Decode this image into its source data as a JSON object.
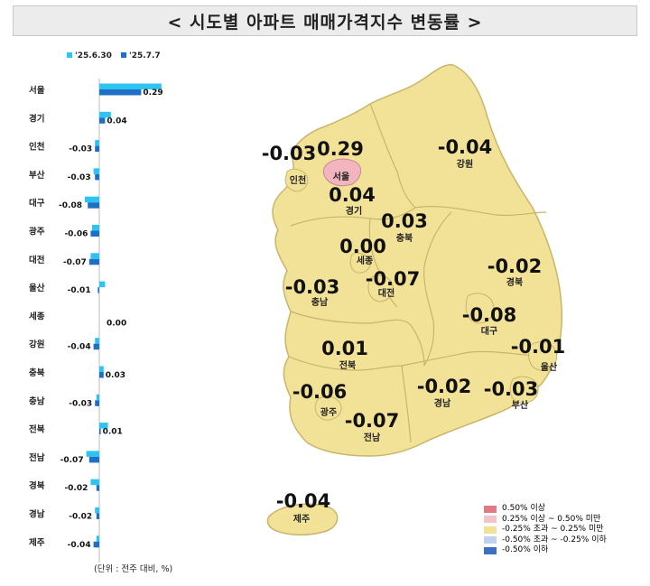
{
  "title": "< 시도별 아파트 매매가격지수 변동률 >",
  "unit_note": "(단위 : 전주 대비, %)",
  "colors": {
    "series_prev": "#2ec4f2",
    "series_curr": "#1f6fc5",
    "map_fill_default": "#f2e297",
    "map_fill_seoul": "#f2b5bf",
    "map_border": "#ffffff",
    "map_outline": "#c9b56a"
  },
  "chart_data": {
    "type": "bar",
    "orientation": "horizontal",
    "categories": [
      "서울",
      "경기",
      "인천",
      "부산",
      "대구",
      "광주",
      "대전",
      "울산",
      "세종",
      "강원",
      "충북",
      "충남",
      "전북",
      "전남",
      "경북",
      "경남",
      "제주"
    ],
    "series": [
      {
        "name": "'25.6.30",
        "values": [
          0.43,
          0.08,
          -0.03,
          -0.04,
          -0.1,
          -0.05,
          -0.06,
          0.04,
          0.0,
          -0.03,
          0.03,
          -0.02,
          0.06,
          -0.09,
          -0.06,
          -0.03,
          -0.02
        ]
      },
      {
        "name": "'25.7.7",
        "values": [
          0.29,
          0.04,
          -0.03,
          -0.03,
          -0.08,
          -0.06,
          -0.07,
          -0.01,
          0.0,
          -0.04,
          0.03,
          -0.03,
          0.01,
          -0.07,
          -0.02,
          -0.02,
          -0.04
        ]
      }
    ],
    "data_labels": [
      "0.29",
      "0.04",
      "-0.03",
      "-0.03",
      "-0.08",
      "-0.06",
      "-0.07",
      "-0.01",
      "0.00",
      "-0.04",
      "0.03",
      "-0.03",
      "0.01",
      "-0.07",
      "-0.02",
      "-0.02",
      "-0.04"
    ],
    "legend_position": "top-left",
    "grid": false
  },
  "map": {
    "regions": [
      {
        "name": "서울",
        "value": "0.29"
      },
      {
        "name": "인천",
        "value": "-0.03"
      },
      {
        "name": "경기",
        "value": "0.04"
      },
      {
        "name": "강원",
        "value": "-0.04"
      },
      {
        "name": "충북",
        "value": "0.03"
      },
      {
        "name": "세종",
        "value": "0.00"
      },
      {
        "name": "대전",
        "value": "-0.07"
      },
      {
        "name": "충남",
        "value": "-0.03"
      },
      {
        "name": "경북",
        "value": "-0.02"
      },
      {
        "name": "대구",
        "value": "-0.08"
      },
      {
        "name": "울산",
        "value": "-0.01"
      },
      {
        "name": "부산",
        "value": "-0.03"
      },
      {
        "name": "경남",
        "value": "-0.02"
      },
      {
        "name": "전북",
        "value": "0.01"
      },
      {
        "name": "광주",
        "value": "-0.06"
      },
      {
        "name": "전남",
        "value": "-0.07"
      },
      {
        "name": "제주",
        "value": "-0.04"
      }
    ]
  },
  "legend": [
    {
      "label": "0.50% 이상",
      "color": "#e07b86"
    },
    {
      "label": "0.25% 이상 ~ 0.50% 미만",
      "color": "#f6c2c9"
    },
    {
      "label": "-0.25% 초과 ~ 0.25% 미만",
      "color": "#f2e297"
    },
    {
      "label": "-0.50% 초과 ~ -0.25% 이하",
      "color": "#bfd3ee"
    },
    {
      "label": "-0.50% 이하",
      "color": "#3d6fc2"
    }
  ]
}
